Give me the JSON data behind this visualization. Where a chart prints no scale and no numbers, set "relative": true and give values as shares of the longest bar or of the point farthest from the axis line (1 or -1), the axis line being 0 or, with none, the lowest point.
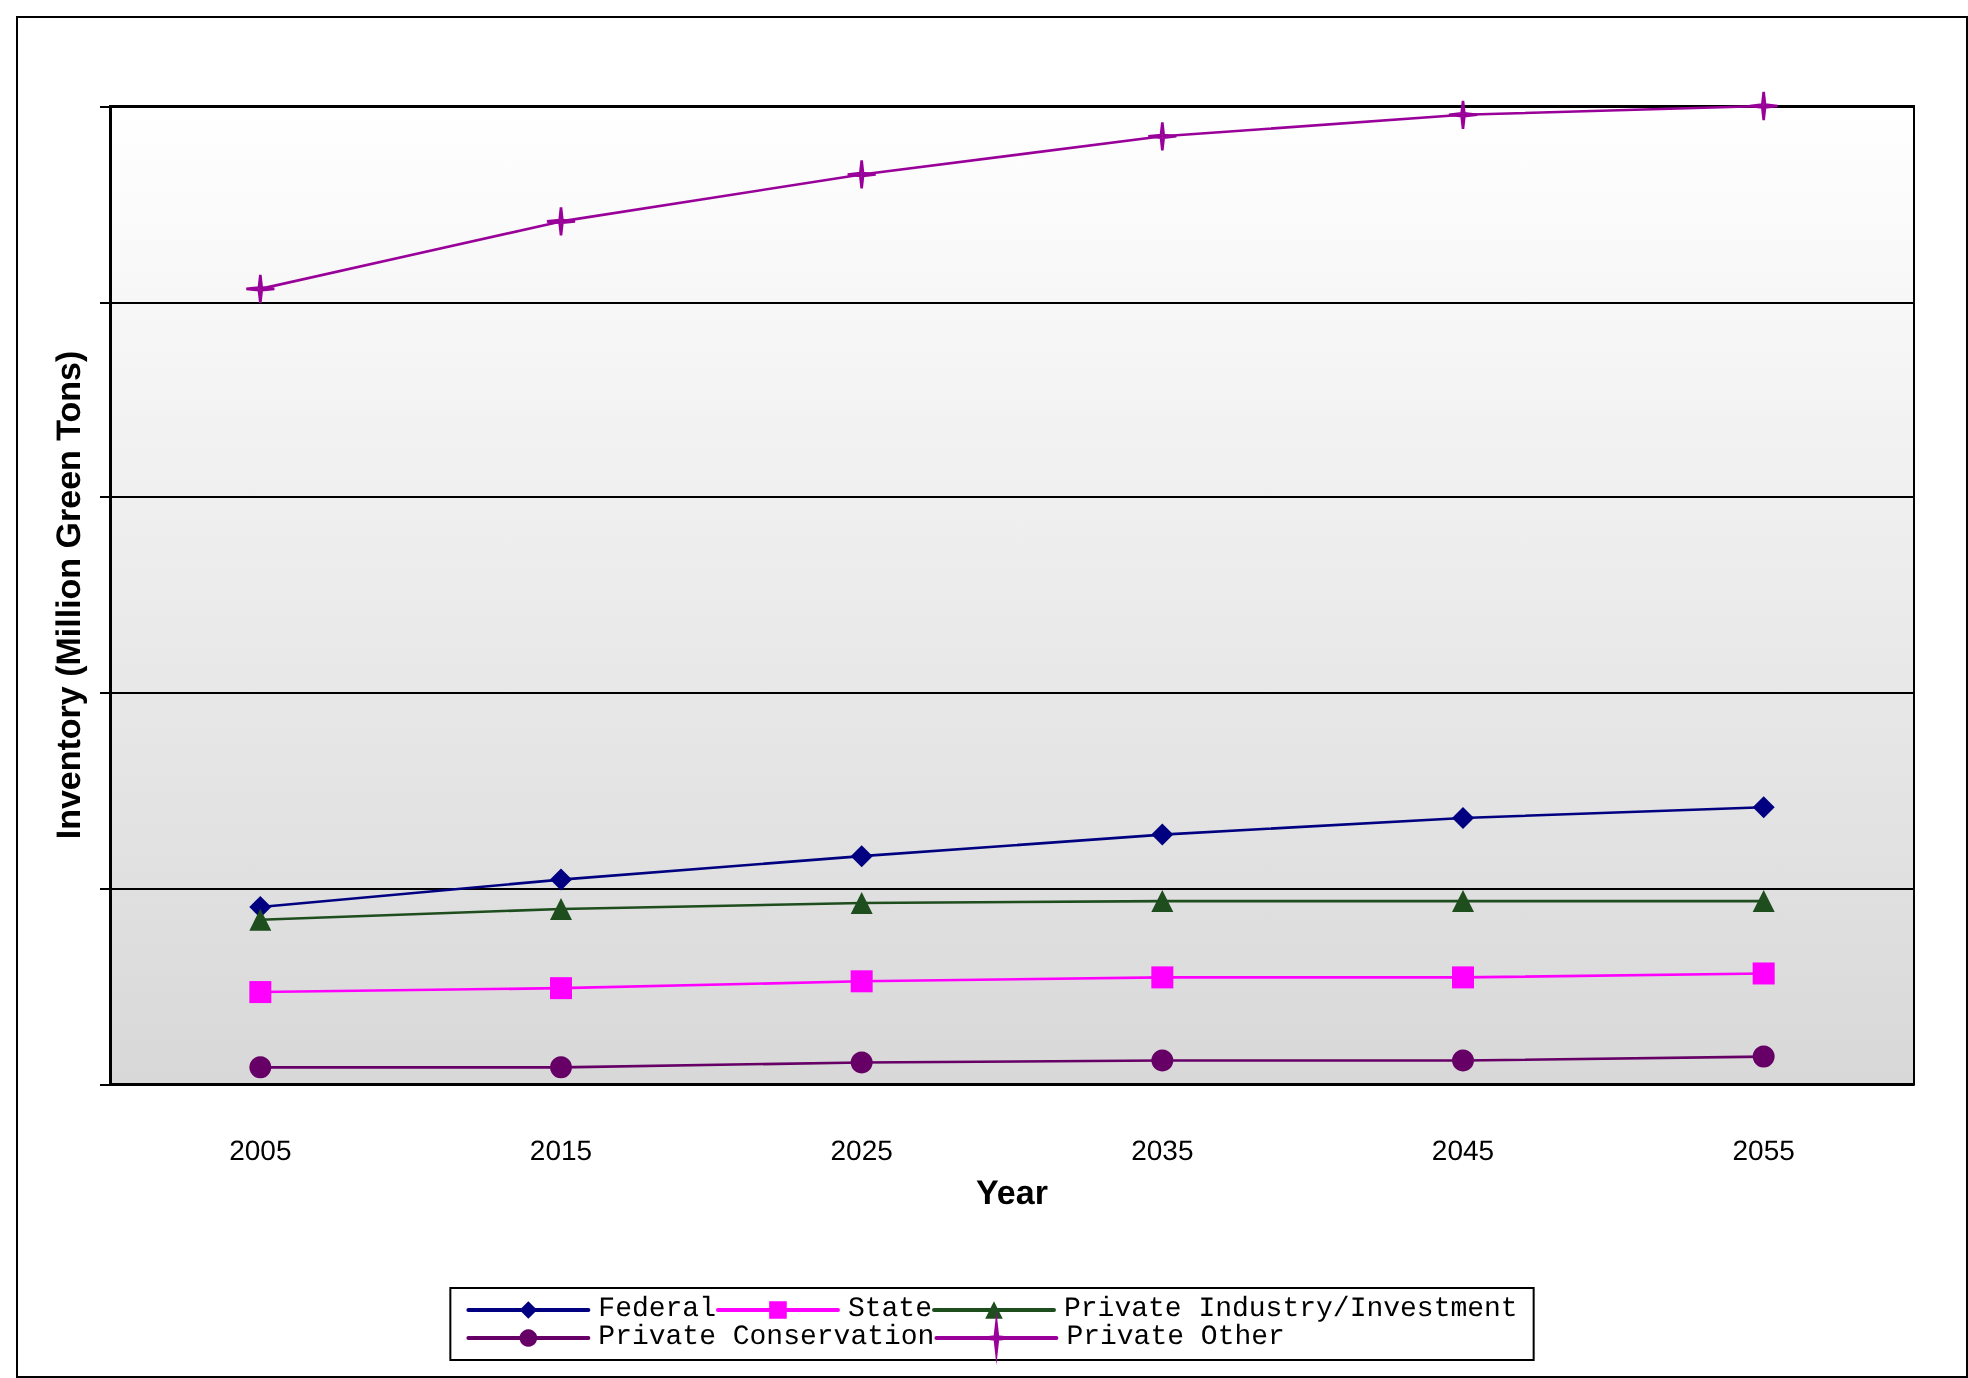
{
  "chart_data": {
    "type": "line",
    "relative": true,
    "xlabel": "Year",
    "ylabel": "Inventory (Million Green Tons)",
    "categories": [
      "2005",
      "2015",
      "2025",
      "2035",
      "2045",
      "2055"
    ],
    "series": [
      {
        "name": "Federal",
        "color": "#000080",
        "marker": "diamond",
        "values": [
          0.181,
          0.209,
          0.233,
          0.255,
          0.272,
          0.283
        ]
      },
      {
        "name": "State",
        "color": "#ff00ff",
        "marker": "square",
        "values": [
          0.094,
          0.098,
          0.105,
          0.109,
          0.109,
          0.113
        ]
      },
      {
        "name": "Private Industry/Investment",
        "color": "#1e4d1e",
        "marker": "triangle",
        "values": [
          0.168,
          0.179,
          0.185,
          0.187,
          0.187,
          0.187
        ]
      },
      {
        "name": "Private Conservation",
        "color": "#660066",
        "marker": "circle",
        "values": [
          0.017,
          0.017,
          0.022,
          0.024,
          0.024,
          0.028
        ]
      },
      {
        "name": "Private Other",
        "color": "#990099",
        "marker": "star",
        "values": [
          0.813,
          0.882,
          0.93,
          0.969,
          0.991,
          1
        ]
      }
    ],
    "grid": "y",
    "legend": "bottom",
    "line_style": "solid"
  }
}
